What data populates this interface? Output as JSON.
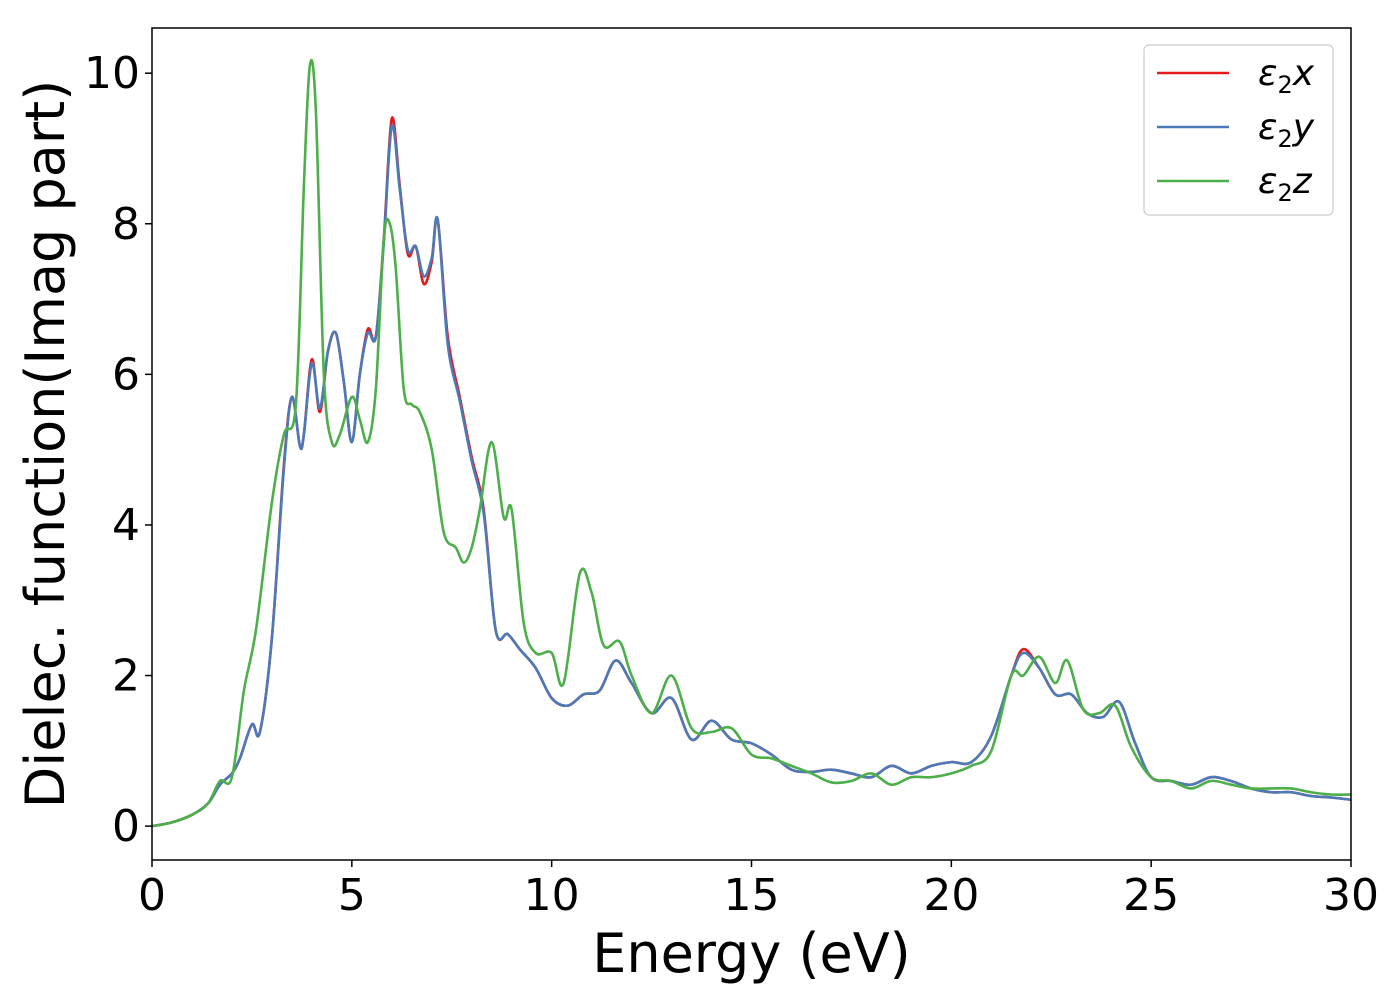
{
  "chart_data": {
    "type": "line",
    "xlabel": "Energy (eV)",
    "ylabel": "Dielec. function(Imag part)",
    "xlim": [
      0,
      30
    ],
    "ylim": [
      -0.45,
      10.6
    ],
    "xticks": [
      0,
      5,
      10,
      15,
      20,
      25,
      30
    ],
    "yticks": [
      0,
      2,
      4,
      6,
      8,
      10
    ],
    "grid": false,
    "legend_position": "top-right",
    "series": [
      {
        "name": "ε2x",
        "legend_base": "ε",
        "legend_sub": "2",
        "legend_suffix": "x",
        "color": "#e41a1c",
        "x": [
          0,
          0.5,
          1.0,
          1.4,
          1.7,
          2.0,
          2.2,
          2.5,
          2.7,
          3.0,
          3.3,
          3.5,
          3.7,
          3.8,
          4.0,
          4.2,
          4.4,
          4.6,
          4.8,
          5.0,
          5.2,
          5.4,
          5.6,
          5.8,
          6.0,
          6.2,
          6.4,
          6.6,
          6.8,
          7.0,
          7.15,
          7.4,
          7.7,
          8.0,
          8.3,
          8.6,
          8.9,
          9.2,
          9.6,
          10.0,
          10.4,
          10.8,
          11.2,
          11.6,
          12.0,
          12.5,
          13.0,
          13.5,
          14.0,
          14.5,
          15.0,
          15.5,
          16.0,
          16.5,
          17.0,
          17.5,
          18.0,
          18.5,
          19.0,
          19.5,
          20.0,
          20.5,
          21.0,
          21.5,
          21.8,
          22.2,
          22.6,
          23.0,
          23.4,
          23.8,
          24.2,
          24.6,
          25.0,
          25.5,
          26.0,
          26.5,
          27.0,
          27.5,
          28.0,
          28.5,
          29.0,
          29.5,
          30.0
        ],
        "y": [
          0,
          0.05,
          0.15,
          0.3,
          0.55,
          0.7,
          0.9,
          1.35,
          1.25,
          2.5,
          4.8,
          5.7,
          5.05,
          5.2,
          6.2,
          5.5,
          6.3,
          6.55,
          5.9,
          5.1,
          6.0,
          6.6,
          6.5,
          7.8,
          9.4,
          8.5,
          7.6,
          7.7,
          7.2,
          7.5,
          8.05,
          6.5,
          5.7,
          4.9,
          4.2,
          2.6,
          2.55,
          2.35,
          2.1,
          1.7,
          1.6,
          1.75,
          1.8,
          2.2,
          1.9,
          1.5,
          1.7,
          1.15,
          1.4,
          1.15,
          1.1,
          0.95,
          0.75,
          0.72,
          0.75,
          0.7,
          0.65,
          0.8,
          0.7,
          0.8,
          0.85,
          0.85,
          1.2,
          2.0,
          2.35,
          2.1,
          1.75,
          1.75,
          1.5,
          1.45,
          1.65,
          1.1,
          0.65,
          0.6,
          0.55,
          0.65,
          0.6,
          0.5,
          0.45,
          0.45,
          0.4,
          0.38,
          0.35
        ]
      },
      {
        "name": "ε2y",
        "legend_base": "ε",
        "legend_sub": "2",
        "legend_suffix": "y",
        "color": "#4a7ab8",
        "x": [
          0,
          0.5,
          1.0,
          1.4,
          1.7,
          2.0,
          2.2,
          2.5,
          2.7,
          3.0,
          3.3,
          3.5,
          3.7,
          3.8,
          4.0,
          4.2,
          4.4,
          4.6,
          4.8,
          5.0,
          5.2,
          5.4,
          5.6,
          5.8,
          6.0,
          6.2,
          6.4,
          6.6,
          6.8,
          7.0,
          7.15,
          7.4,
          7.7,
          8.0,
          8.3,
          8.6,
          8.9,
          9.2,
          9.6,
          10.0,
          10.4,
          10.8,
          11.2,
          11.6,
          12.0,
          12.5,
          13.0,
          13.5,
          14.0,
          14.5,
          15.0,
          15.5,
          16.0,
          16.5,
          17.0,
          17.5,
          18.0,
          18.5,
          19.0,
          19.5,
          20.0,
          20.5,
          21.0,
          21.5,
          21.8,
          22.2,
          22.6,
          23.0,
          23.4,
          23.8,
          24.2,
          24.6,
          25.0,
          25.5,
          26.0,
          26.5,
          27.0,
          27.5,
          28.0,
          28.5,
          29.0,
          29.5,
          30.0
        ],
        "y": [
          0,
          0.05,
          0.15,
          0.3,
          0.55,
          0.7,
          0.9,
          1.35,
          1.25,
          2.5,
          4.75,
          5.7,
          5.05,
          5.2,
          6.15,
          5.55,
          6.3,
          6.55,
          5.9,
          5.1,
          6.0,
          6.55,
          6.5,
          7.75,
          9.3,
          8.45,
          7.65,
          7.7,
          7.3,
          7.55,
          8.05,
          6.4,
          5.65,
          4.85,
          4.15,
          2.6,
          2.55,
          2.35,
          2.1,
          1.7,
          1.6,
          1.75,
          1.8,
          2.2,
          1.9,
          1.5,
          1.7,
          1.15,
          1.4,
          1.15,
          1.1,
          0.95,
          0.75,
          0.72,
          0.75,
          0.7,
          0.65,
          0.8,
          0.7,
          0.8,
          0.85,
          0.85,
          1.2,
          2.0,
          2.3,
          2.1,
          1.75,
          1.75,
          1.5,
          1.45,
          1.65,
          1.1,
          0.65,
          0.6,
          0.55,
          0.65,
          0.6,
          0.5,
          0.45,
          0.45,
          0.4,
          0.38,
          0.35
        ]
      },
      {
        "name": "ε2z",
        "legend_base": "ε",
        "legend_sub": "2",
        "legend_suffix": "z",
        "color": "#4daf4a",
        "x": [
          0,
          0.5,
          1.0,
          1.4,
          1.7,
          2.0,
          2.3,
          2.6,
          3.0,
          3.3,
          3.6,
          3.8,
          3.95,
          4.1,
          4.3,
          4.5,
          4.7,
          5.0,
          5.2,
          5.4,
          5.6,
          5.8,
          5.95,
          6.1,
          6.3,
          6.5,
          6.7,
          7.0,
          7.3,
          7.6,
          7.8,
          8.0,
          8.2,
          8.5,
          8.8,
          9.0,
          9.3,
          9.6,
          10.0,
          10.3,
          10.7,
          11.0,
          11.3,
          11.7,
          12.0,
          12.5,
          13.0,
          13.5,
          14.0,
          14.5,
          15.0,
          15.5,
          16.0,
          16.5,
          17.0,
          17.5,
          18.0,
          18.5,
          19.0,
          19.5,
          20.0,
          20.5,
          21.0,
          21.5,
          21.8,
          22.2,
          22.6,
          22.9,
          23.3,
          23.7,
          24.1,
          24.5,
          25.0,
          25.5,
          26.0,
          26.5,
          27.0,
          27.5,
          28.0,
          28.5,
          29.0,
          29.5,
          30.0
        ],
        "y": [
          0,
          0.05,
          0.15,
          0.3,
          0.6,
          0.65,
          1.8,
          2.6,
          4.3,
          5.2,
          5.6,
          8.5,
          10.1,
          9.5,
          6.0,
          5.1,
          5.2,
          5.7,
          5.4,
          5.1,
          5.8,
          7.8,
          8.0,
          7.4,
          5.8,
          5.6,
          5.5,
          5.0,
          3.9,
          3.7,
          3.5,
          3.7,
          4.2,
          5.1,
          4.1,
          4.2,
          2.7,
          2.3,
          2.3,
          1.9,
          3.35,
          3.1,
          2.4,
          2.45,
          2.0,
          1.5,
          2.0,
          1.3,
          1.25,
          1.3,
          0.95,
          0.9,
          0.8,
          0.7,
          0.58,
          0.6,
          0.7,
          0.55,
          0.65,
          0.65,
          0.7,
          0.8,
          1.0,
          2.0,
          2.0,
          2.25,
          1.9,
          2.2,
          1.55,
          1.5,
          1.6,
          1.05,
          0.65,
          0.6,
          0.5,
          0.6,
          0.55,
          0.5,
          0.5,
          0.5,
          0.45,
          0.42,
          0.42
        ]
      }
    ]
  }
}
